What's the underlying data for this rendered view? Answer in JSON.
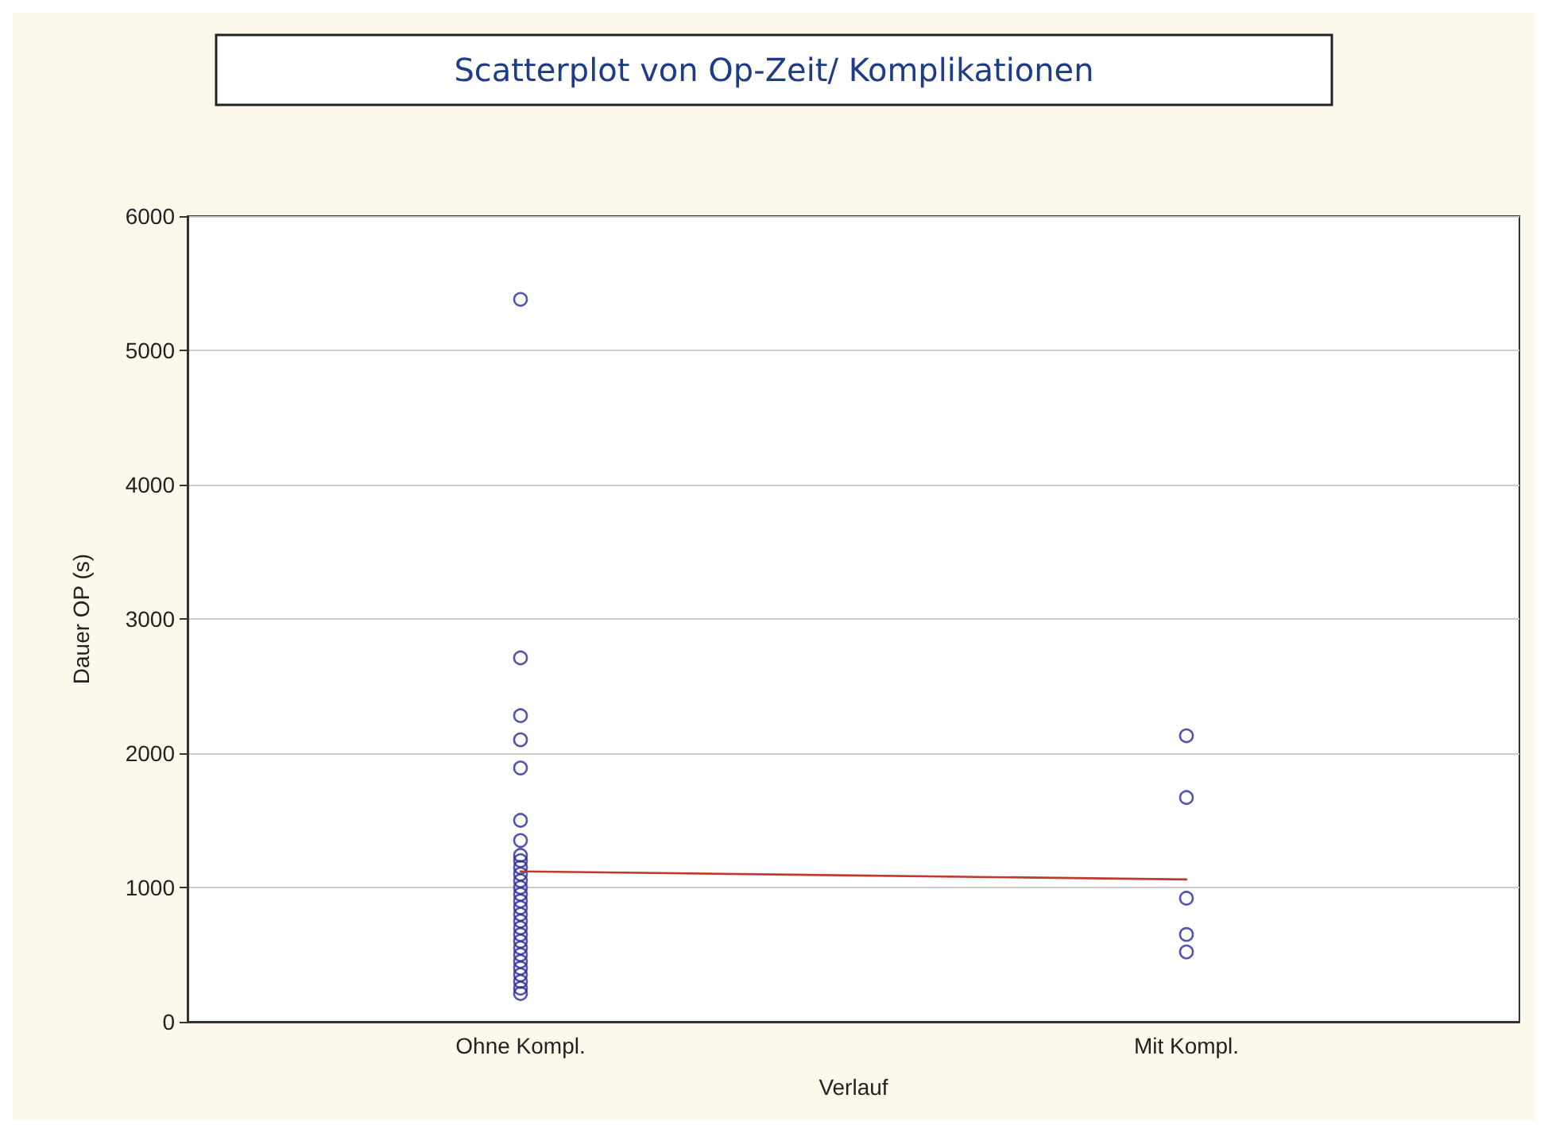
{
  "chart_data": {
    "type": "scatter",
    "title": "Scatterplot von Op-Zeit/ Komplikationen",
    "xlabel": "Verlauf",
    "ylabel": "Dauer OP (s)",
    "categories": [
      "Ohne Kompl.",
      "Mit Kompl."
    ],
    "series": [
      {
        "color": "#2b2b9c",
        "marker": "circle",
        "x": [
          "Ohne Kompl.",
          "Ohne Kompl.",
          "Ohne Kompl.",
          "Ohne Kompl.",
          "Ohne Kompl.",
          "Ohne Kompl.",
          "Ohne Kompl.",
          "Ohne Kompl.",
          "Ohne Kompl.",
          "Ohne Kompl.",
          "Ohne Kompl.",
          "Ohne Kompl.",
          "Ohne Kompl.",
          "Ohne Kompl.",
          "Ohne Kompl.",
          "Ohne Kompl.",
          "Ohne Kompl.",
          "Ohne Kompl.",
          "Ohne Kompl.",
          "Ohne Kompl.",
          "Ohne Kompl.",
          "Ohne Kompl.",
          "Ohne Kompl.",
          "Ohne Kompl.",
          "Ohne Kompl.",
          "Ohne Kompl.",
          "Ohne Kompl.",
          "Ohne Kompl.",
          "Ohne Kompl.",
          "Mit Kompl.",
          "Mit Kompl.",
          "Mit Kompl.",
          "Mit Kompl.",
          "Mit Kompl."
        ],
        "values": [
          5380,
          2710,
          2280,
          2100,
          1890,
          1500,
          1350,
          1240,
          1200,
          1150,
          1100,
          1050,
          1000,
          950,
          900,
          850,
          800,
          750,
          700,
          650,
          600,
          550,
          500,
          450,
          400,
          350,
          300,
          250,
          210,
          2130,
          1670,
          920,
          650,
          520
        ]
      },
      {
        "type": "line",
        "marker": "none",
        "color": "#c0392b",
        "x": [
          "Ohne Kompl.",
          "Mit Kompl."
        ],
        "values": [
          1120,
          1060
        ]
      }
    ],
    "ylim": [
      0,
      6000
    ],
    "yticks": [
      0,
      1000,
      2000,
      3000,
      4000,
      5000,
      6000
    ],
    "grid": "y",
    "line_style": "solid"
  }
}
